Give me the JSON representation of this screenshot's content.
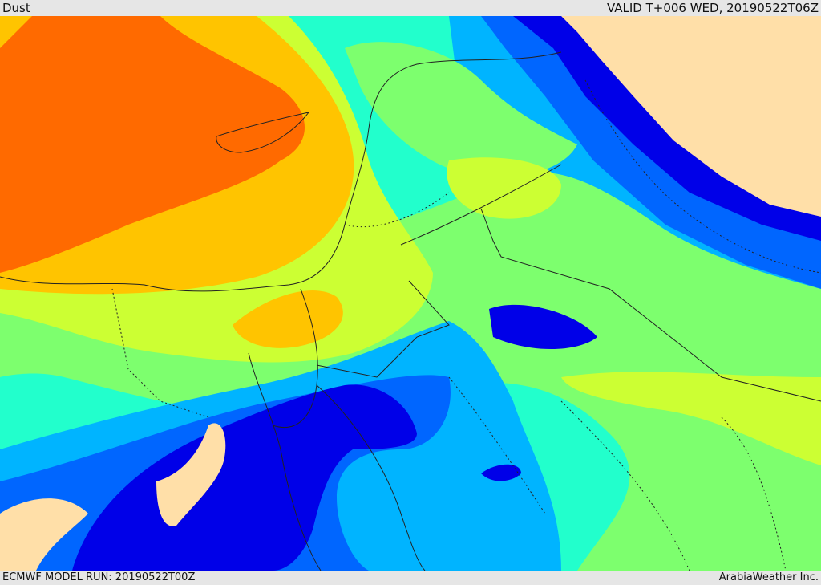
{
  "header": {
    "field_name": "Dust",
    "valid_time": "VALID T+006 WED, 20190522T06Z"
  },
  "footer": {
    "model_run": "ECMWF MODEL RUN: 20190522T00Z",
    "credit": "ArabiaWeather Inc."
  },
  "colors": {
    "level_0": "#ffdfa8",
    "level_1": "#0000e8",
    "level_2": "#0066ff",
    "level_3": "#00b4ff",
    "level_4": "#22ffcc",
    "level_5": "#7dff6e",
    "level_6": "#ccff33",
    "level_7": "#ffc400",
    "level_8": "#ff6a00"
  }
}
